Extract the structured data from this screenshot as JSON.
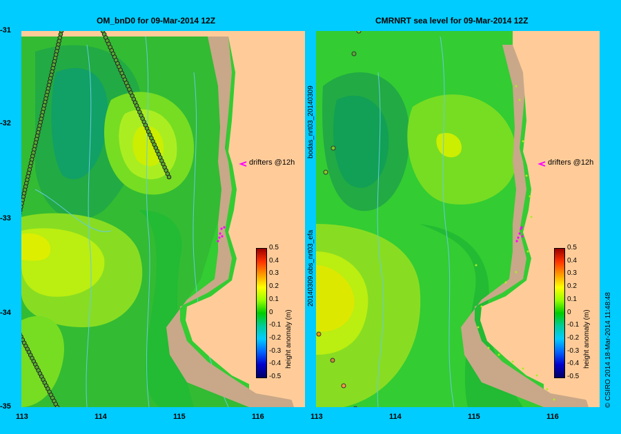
{
  "panels": {
    "left_title": "OM_bnD0  for 09-Mar-2014 12Z",
    "right_title": "CMRNRT sea level  for 09-Mar-2014 12Z"
  },
  "axes": {
    "y_ticks": [
      "-31",
      "-32",
      "-33",
      "-34",
      "-35"
    ],
    "x_ticks": [
      "113",
      "114",
      "115",
      "116"
    ]
  },
  "drifters": {
    "label": "drifters @12h",
    "marker_color": "#ff00ff"
  },
  "colorbar": {
    "label": "height anomaly (m)",
    "ticks": [
      "0.5",
      "0.4",
      "0.3",
      "0.2",
      "0.1",
      "0",
      "-0.1",
      "-0.2",
      "-0.3",
      "-0.4",
      "-0.5"
    ],
    "colors": [
      "#000066",
      "#0000cc",
      "#0066ff",
      "#00ccff",
      "#00cc99",
      "#00cc00",
      "#99ff00",
      "#ffff00",
      "#ff9900",
      "#ff3300",
      "#990000"
    ]
  },
  "side_labels": {
    "obs1": "bodas_nrt03_20140309",
    "obs2": "20140309.obs_nrt03_efa",
    "credit": "© CSIRO 2014   18-Mar-2014 11:48:48"
  },
  "land_color": "#ffcc99",
  "shelf_color": "#c8a888"
}
